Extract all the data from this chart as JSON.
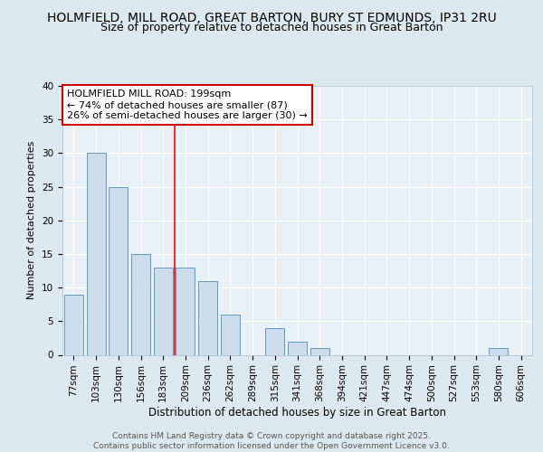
{
  "title_line1": "HOLMFIELD, MILL ROAD, GREAT BARTON, BURY ST EDMUNDS, IP31 2RU",
  "title_line2": "Size of property relative to detached houses in Great Barton",
  "categories": [
    "77sqm",
    "103sqm",
    "130sqm",
    "156sqm",
    "183sqm",
    "209sqm",
    "236sqm",
    "262sqm",
    "289sqm",
    "315sqm",
    "341sqm",
    "368sqm",
    "394sqm",
    "421sqm",
    "447sqm",
    "474sqm",
    "500sqm",
    "527sqm",
    "553sqm",
    "580sqm",
    "606sqm"
  ],
  "values": [
    9,
    30,
    25,
    15,
    13,
    13,
    11,
    6,
    0,
    4,
    2,
    1,
    0,
    0,
    0,
    0,
    0,
    0,
    0,
    1,
    0
  ],
  "bar_color": "#ccdcec",
  "bar_edge_color": "#6699bb",
  "ylabel": "Number of detached properties",
  "xlabel": "Distribution of detached houses by size in Great Barton",
  "ylim": [
    0,
    40
  ],
  "red_line_x": 4.5,
  "annotation_text": "HOLMFIELD MILL ROAD: 199sqm\n← 74% of detached houses are smaller (87)\n26% of semi-detached houses are larger (30) →",
  "annotation_box_color": "#ffffff",
  "annotation_box_edge": "#cc0000",
  "footer_text": "Contains HM Land Registry data © Crown copyright and database right 2025.\nContains public sector information licensed under the Open Government Licence v3.0.",
  "bg_color": "#dce8f0",
  "plot_bg_color": "#e8f0f8",
  "grid_color": "#ffffff",
  "title_fontsize": 10,
  "subtitle_fontsize": 9,
  "tick_fontsize": 7.5,
  "ylabel_fontsize": 8,
  "xlabel_fontsize": 8.5,
  "footer_fontsize": 6.5,
  "annotation_fontsize": 8
}
